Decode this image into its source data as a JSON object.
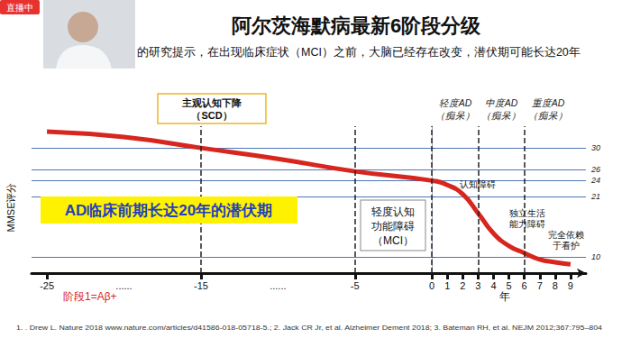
{
  "slide": {
    "badge": "直播中",
    "title": "阿尔茨海默病最新6阶段分级",
    "subtitle": "的研究提示，在出现临床症状（MCI）之前，大脑已经存在改变，潜伏期可能长达20年",
    "footnote": "1. . Drew L. Nature 2018 www.nature.com/articles/d41586-018-05718-5.; 2. Jack CR Jr, et al. Alzheimer Dement 2018; 3. Bateman RH, et al. NEJM 2012;367:795–804"
  },
  "chart_data": {
    "type": "line",
    "ylabel": "MMSE评分",
    "xlabel": "年",
    "x": [
      -25,
      -20,
      -15,
      -10,
      -5,
      0,
      1,
      2,
      3,
      4,
      5,
      6,
      7,
      8,
      9
    ],
    "values": [
      33,
      32,
      30,
      28,
      25.7,
      24,
      23.2,
      21.5,
      18,
      14.3,
      12,
      10.7,
      9.5,
      9,
      8.6
    ],
    "color": "#d7261e",
    "xlim": [
      -26,
      10
    ],
    "xticks": [
      -25,
      {
        "value": -20,
        "label": "......"
      },
      -15,
      {
        "value": -10,
        "label": "......"
      },
      -5,
      0,
      1,
      2,
      3,
      4,
      5,
      6,
      7,
      8,
      9
    ],
    "ylim": [
      7,
      34
    ],
    "yticks": [
      10,
      21,
      24,
      26,
      30
    ],
    "grid": true,
    "dividers": [
      -15,
      -5,
      0,
      3,
      6
    ],
    "annotations": {
      "preclinical": "AD临床前期长达20年的潜伏期",
      "scd": [
        "主观认知下降",
        "（SCD）"
      ],
      "mci": [
        "轻度认知",
        "功能障碍",
        "（MCI）"
      ],
      "stage1": "阶段1=Aβ+",
      "stages": [
        [
          "轻度AD",
          "（痴呆）"
        ],
        [
          "中度AD",
          "（痴呆）"
        ],
        [
          "重度AD",
          "（痴呆）"
        ]
      ],
      "symptoms": [
        [
          "认知障碍"
        ],
        [
          "独立生活",
          "能力障碍"
        ],
        [
          "完全依赖",
          "于看护"
        ]
      ]
    }
  }
}
